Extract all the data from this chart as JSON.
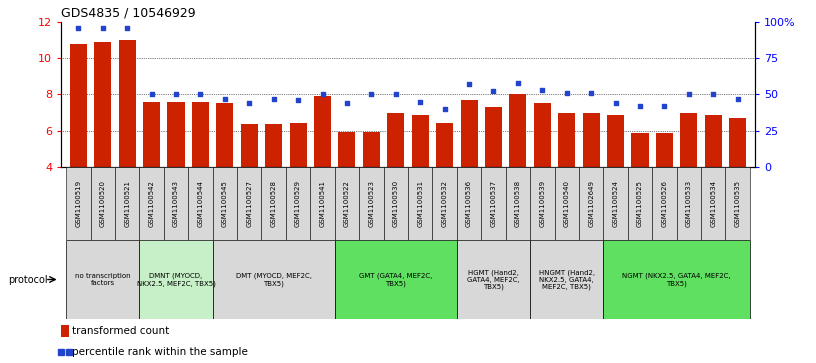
{
  "title": "GDS4835 / 10546929",
  "samples": [
    "GSM1100519",
    "GSM1100520",
    "GSM1100521",
    "GSM1100542",
    "GSM1100543",
    "GSM1100544",
    "GSM1100545",
    "GSM1100527",
    "GSM1100528",
    "GSM1100529",
    "GSM1100541",
    "GSM1100522",
    "GSM1100523",
    "GSM1100530",
    "GSM1100531",
    "GSM1100532",
    "GSM1100536",
    "GSM1100537",
    "GSM1100538",
    "GSM1100539",
    "GSM1100540",
    "GSM1102649",
    "GSM1100524",
    "GSM1100525",
    "GSM1100526",
    "GSM1100533",
    "GSM1100534",
    "GSM1100535"
  ],
  "bar_values": [
    10.8,
    10.9,
    11.0,
    7.6,
    7.6,
    7.6,
    7.5,
    6.35,
    6.35,
    6.45,
    7.9,
    5.95,
    5.95,
    6.95,
    6.85,
    6.45,
    7.7,
    7.3,
    8.0,
    7.5,
    7.0,
    7.0,
    6.85,
    5.85,
    5.85,
    6.95,
    6.85,
    6.7
  ],
  "percentile_values": [
    96,
    96,
    96,
    50,
    50,
    50,
    47,
    44,
    47,
    46,
    50,
    44,
    50,
    50,
    45,
    40,
    57,
    52,
    58,
    53,
    51,
    51,
    44,
    42,
    42,
    50,
    50,
    47
  ],
  "protocols": [
    {
      "label": "no transcription\nfactors",
      "start": 0,
      "end": 3,
      "color": "#d8d8d8"
    },
    {
      "label": "DMNT (MYOCD,\nNKX2.5, MEF2C, TBX5)",
      "start": 3,
      "end": 6,
      "color": "#c8f0c8"
    },
    {
      "label": "DMT (MYOCD, MEF2C,\nTBX5)",
      "start": 6,
      "end": 11,
      "color": "#d8d8d8"
    },
    {
      "label": "GMT (GATA4, MEF2C,\nTBX5)",
      "start": 11,
      "end": 16,
      "color": "#60e060"
    },
    {
      "label": "HGMT (Hand2,\nGATA4, MEF2C,\nTBX5)",
      "start": 16,
      "end": 19,
      "color": "#d8d8d8"
    },
    {
      "label": "HNGMT (Hand2,\nNKX2.5, GATA4,\nMEF2C, TBX5)",
      "start": 19,
      "end": 22,
      "color": "#d8d8d8"
    },
    {
      "label": "NGMT (NKX2.5, GATA4, MEF2C,\nTBX5)",
      "start": 22,
      "end": 28,
      "color": "#60e060"
    }
  ],
  "bar_color": "#cc2200",
  "dot_color": "#2244cc",
  "ylim_left": [
    4,
    12
  ],
  "ylim_right": [
    0,
    100
  ],
  "yticks_left": [
    4,
    6,
    8,
    10,
    12
  ],
  "yticks_right": [
    0,
    25,
    50,
    75,
    100
  ],
  "ytick_labels_right": [
    "0",
    "25",
    "50",
    "75",
    "100%"
  ],
  "gridlines": [
    6,
    8,
    10
  ]
}
